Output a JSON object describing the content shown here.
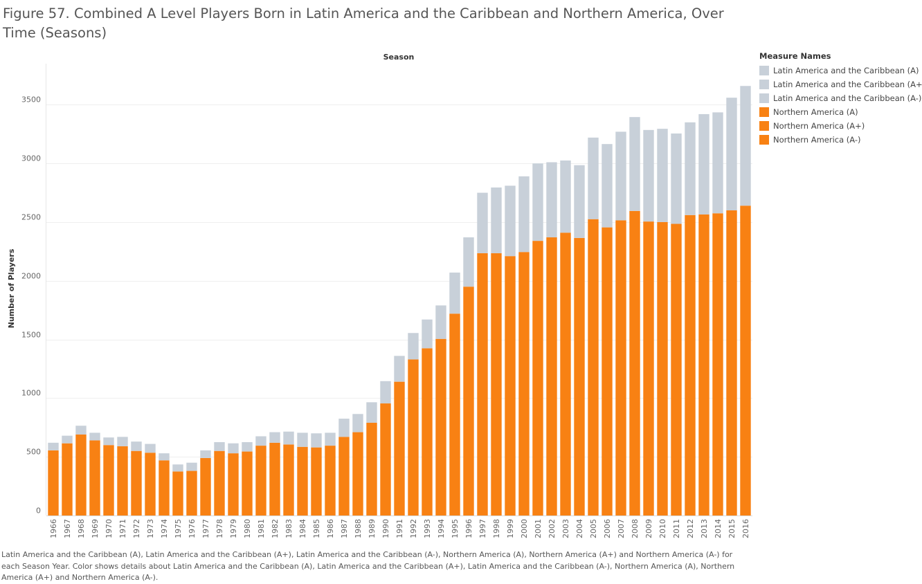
{
  "title": "Figure 57. Combined A Level Players Born in Latin America and the Caribbean and Northern America, Over Time (Seasons)",
  "caption": "Latin America and the Caribbean (A), Latin America and the Caribbean (A+), Latin America and the Caribbean (A-), Northern America (A), Northern America (A+) and Northern America (A-) for each Season Year.  Color shows details about Latin America and the Caribbean (A), Latin America and the Caribbean (A+), Latin America and the Caribbean (A-), Northern America (A), Northern America (A+) and Northern America (A-).",
  "legend": {
    "title": "Measure Names",
    "items": [
      {
        "label": "Latin America and the Caribbean (A)",
        "color": "#c8d0d9"
      },
      {
        "label": "Latin America and the Caribbean (A+)",
        "color": "#c8d0d9"
      },
      {
        "label": "Latin America and the Caribbean (A-)",
        "color": "#c8d0d9"
      },
      {
        "label": "Northern America (A)",
        "color": "#f88113"
      },
      {
        "label": "Northern America (A+)",
        "color": "#f88113"
      },
      {
        "label": "Northern America (A-)",
        "color": "#f88113"
      }
    ]
  },
  "chart_data": {
    "type": "bar",
    "stacked": true,
    "xlabel": "Season",
    "ylabel": "Number of Players",
    "ylim": [
      0,
      3850
    ],
    "yticks": [
      0,
      500,
      1000,
      1500,
      2000,
      2500,
      3000,
      3500
    ],
    "grid": true,
    "legend_position": "right",
    "categories": [
      "1966",
      "1967",
      "1968",
      "1969",
      "1970",
      "1971",
      "1972",
      "1973",
      "1974",
      "1975",
      "1976",
      "1977",
      "1978",
      "1979",
      "1980",
      "1981",
      "1982",
      "1983",
      "1984",
      "1985",
      "1986",
      "1987",
      "1988",
      "1989",
      "1990",
      "1991",
      "1992",
      "1993",
      "1994",
      "1995",
      "1996",
      "1997",
      "1998",
      "1999",
      "2000",
      "2001",
      "2002",
      "2003",
      "2004",
      "2005",
      "2006",
      "2007",
      "2008",
      "2009",
      "2010",
      "2011",
      "2012",
      "2013",
      "2014",
      "2015",
      "2016"
    ],
    "series": [
      {
        "name": "Northern America",
        "color": "#f88113",
        "values": [
          555,
          615,
          690,
          640,
          600,
          590,
          550,
          535,
          470,
          375,
          380,
          490,
          550,
          530,
          545,
          595,
          620,
          605,
          585,
          580,
          595,
          670,
          710,
          790,
          955,
          1140,
          1330,
          1425,
          1505,
          1720,
          1950,
          2235,
          2235,
          2210,
          2245,
          2340,
          2370,
          2410,
          2365,
          2525,
          2455,
          2515,
          2595,
          2505,
          2500,
          2485,
          2560,
          2565,
          2575,
          2600,
          2640
        ]
      },
      {
        "name": "Latin America and the Caribbean",
        "color": "#c8d0d9",
        "values": [
          65,
          65,
          75,
          65,
          65,
          80,
          80,
          75,
          60,
          60,
          70,
          65,
          75,
          85,
          80,
          80,
          90,
          110,
          120,
          120,
          110,
          155,
          155,
          175,
          190,
          220,
          225,
          245,
          285,
          350,
          420,
          515,
          560,
          600,
          645,
          660,
          640,
          615,
          620,
          695,
          710,
          755,
          800,
          780,
          795,
          770,
          790,
          855,
          860,
          960,
          1020
        ]
      }
    ]
  }
}
